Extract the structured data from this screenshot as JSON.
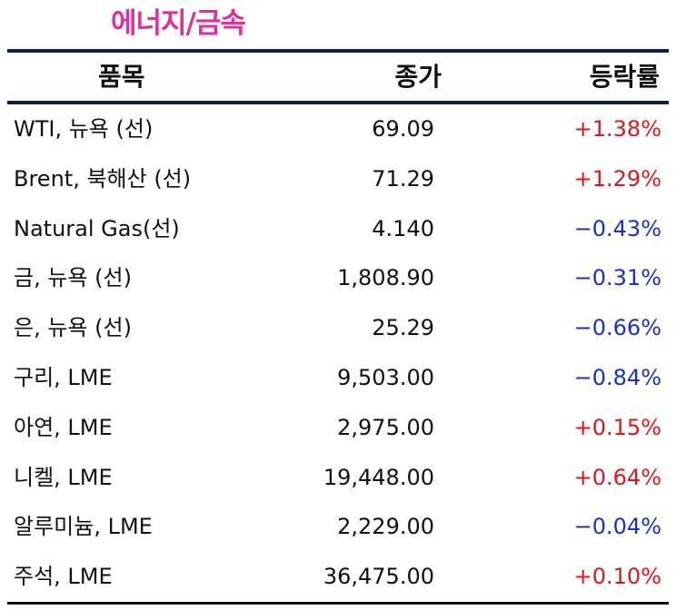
{
  "title": "에너지/금속",
  "table": {
    "headers": {
      "item": "품목",
      "close": "종가",
      "change": "등락률"
    },
    "rows": [
      {
        "name": "WTI, 뉴욕 (선)",
        "close": "69.09",
        "change": "+1.38%",
        "direction": "up"
      },
      {
        "name": "Brent, 북해산 (선)",
        "close": "71.29",
        "change": "+1.29%",
        "direction": "up"
      },
      {
        "name": "Natural Gas(선)",
        "close": "4.140",
        "change": "−0.43%",
        "direction": "down"
      },
      {
        "name": "금, 뉴욕  (선)",
        "close": "1,808.90",
        "change": "−0.31%",
        "direction": "down"
      },
      {
        "name": "은, 뉴욕  (선)",
        "close": "25.29",
        "change": "−0.66%",
        "direction": "down"
      },
      {
        "name": "구리, LME",
        "close": "9,503.00",
        "change": "−0.84%",
        "direction": "down"
      },
      {
        "name": "아연, LME",
        "close": "2,975.00",
        "change": "+0.15%",
        "direction": "up"
      },
      {
        "name": "니켈, LME",
        "close": "19,448.00",
        "change": "+0.64%",
        "direction": "up"
      },
      {
        "name": "알루미늄, LME",
        "close": "2,229.00",
        "change": "−0.04%",
        "direction": "down"
      },
      {
        "name": "주석, LME",
        "close": "36,475.00",
        "change": "+0.10%",
        "direction": "up"
      }
    ]
  },
  "colors": {
    "title": "#e0309a",
    "rule": "#0f1f45",
    "up": "#e0161e",
    "down": "#1a2fd0"
  }
}
